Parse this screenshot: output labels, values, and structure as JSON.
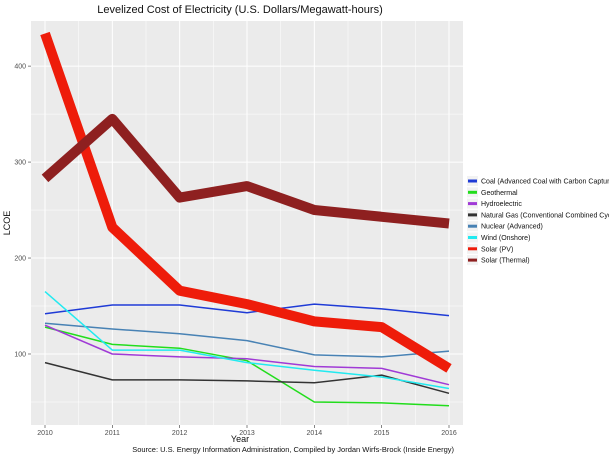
{
  "chart_data": {
    "type": "line",
    "title": "Levelized Cost of Electricity (U.S. Dollars/Megawatt-hours)",
    "xlabel": "Year",
    "ylabel": "LCOE",
    "x": [
      2010,
      2011,
      2012,
      2013,
      2014,
      2015,
      2016
    ],
    "x_tick_labels": [
      "2010",
      "2011",
      "2012",
      "2013",
      "2014",
      "2015",
      "2016"
    ],
    "yticks": [
      100,
      200,
      300,
      400
    ],
    "y_tick_labels": [
      "100",
      "200",
      "300",
      "400"
    ],
    "ylim": [
      26,
      447
    ],
    "grid": true,
    "legend_position": "right",
    "caption": "Source: U.S. Energy Information Administration, Compiled by Jordan Wirfs-Brock (Inside Energy)",
    "series": [
      {
        "name": "Coal (Advanced Coal with Carbon Capture)",
        "color": "#1f3bd6",
        "weight": "thin",
        "values": [
          142,
          151,
          151,
          143,
          152,
          147,
          140
        ]
      },
      {
        "name": "Geothermal",
        "color": "#22dd1c",
        "weight": "thin",
        "values": [
          128,
          110,
          106,
          93,
          50,
          49,
          46
        ]
      },
      {
        "name": "Hydroelectric",
        "color": "#a03ad6",
        "weight": "thin",
        "values": [
          130,
          100,
          97,
          95,
          87,
          85,
          68
        ]
      },
      {
        "name": "Natural Gas (Conventional Combined Cycle)",
        "color": "#333333",
        "weight": "thin",
        "values": [
          91,
          73,
          73,
          72,
          70,
          78,
          59
        ]
      },
      {
        "name": "Nuclear (Advanced)",
        "color": "#4882b4",
        "weight": "thin",
        "values": [
          132,
          126,
          121,
          114,
          99,
          97,
          103
        ]
      },
      {
        "name": "Wind (Onshore)",
        "color": "#22eaf0",
        "weight": "thin",
        "values": [
          165,
          104,
          104,
          91,
          83,
          76,
          64
        ]
      },
      {
        "name": "Solar (PV)",
        "color": "#ee1c0a",
        "weight": "thick",
        "values": [
          434,
          232,
          166,
          152,
          134,
          128,
          85
        ]
      },
      {
        "name": "Solar (Thermal)",
        "color": "#8e2020",
        "weight": "thick",
        "values": [
          283,
          345,
          263,
          275,
          250,
          243,
          236
        ]
      }
    ]
  }
}
